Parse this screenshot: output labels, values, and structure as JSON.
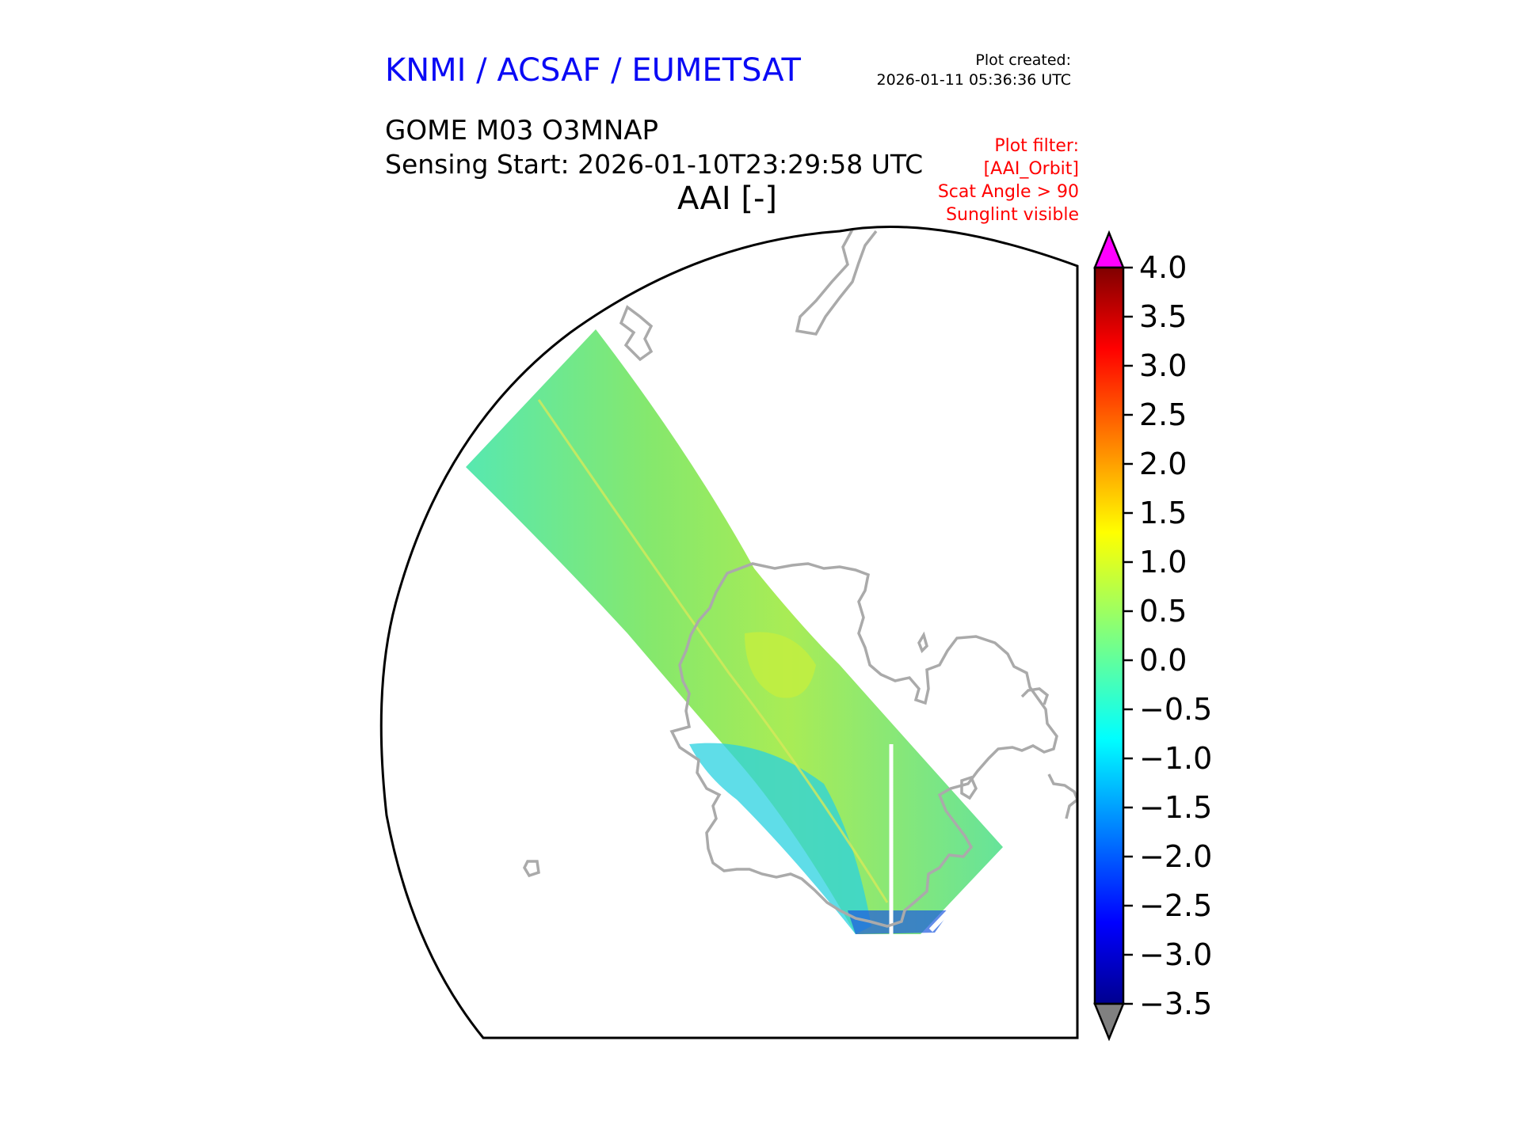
{
  "header": {
    "credit": "KNMI / ACSAF / EUMETSAT",
    "plot_created_label": "Plot created:",
    "plot_created_time": "2026-01-11 05:36:36 UTC",
    "product": "GOME M03 O3MNAP",
    "sensing_start": "Sensing Start: 2026-01-10T23:29:58 UTC",
    "variable": "AAI [-]"
  },
  "filter": {
    "title": "Plot filter:",
    "lines": [
      "[AAI_Orbit]",
      "Scat Angle > 90",
      "Sunglint visible"
    ]
  },
  "colorbar": {
    "min": -3.5,
    "max": 4.0,
    "ticks": [
      "4.0",
      "3.5",
      "3.0",
      "2.5",
      "2.0",
      "1.5",
      "1.0",
      "0.5",
      "0.0",
      "−0.5",
      "−1.0",
      "−1.5",
      "−2.0",
      "−2.5",
      "−3.0",
      "−3.5"
    ],
    "over_color": "#ff00ff",
    "under_color": "#808080",
    "colormap": "jet"
  },
  "map": {
    "coastline_color": "#aaaaaa",
    "swath_dominant_color": "#7de07a"
  }
}
